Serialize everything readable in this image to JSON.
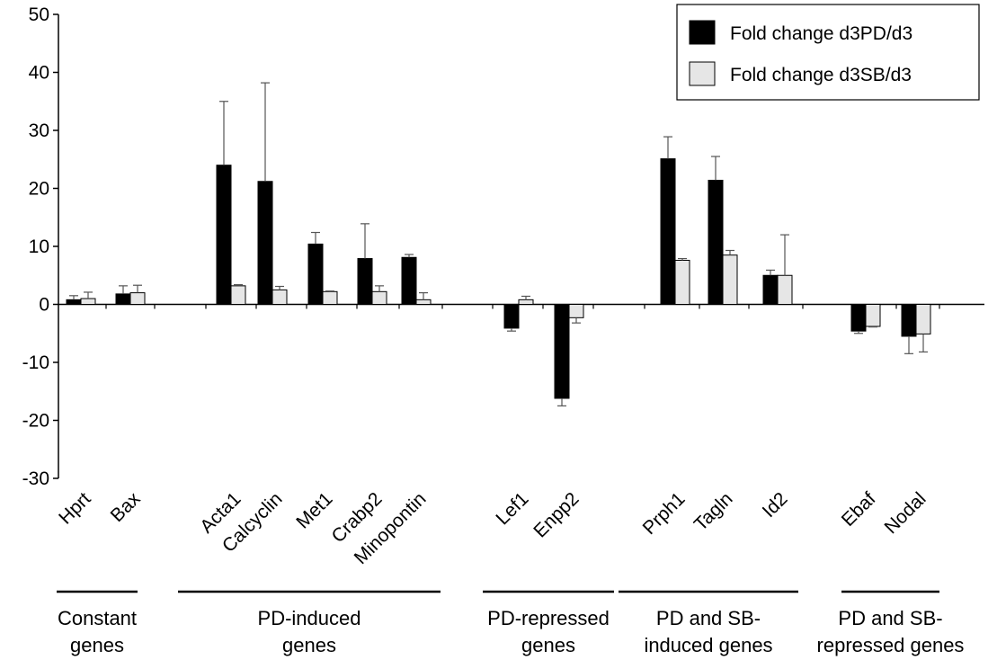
{
  "chart_data": {
    "type": "bar",
    "ylim": [
      -30,
      50
    ],
    "yticks": [
      -30,
      -20,
      -10,
      0,
      10,
      20,
      30,
      40,
      50
    ],
    "ytick_labels": [
      "-30",
      "-20",
      "-10",
      "0",
      "10",
      "20",
      "30",
      "40",
      "50"
    ],
    "grid": false,
    "legend_position": "top-right",
    "categories": [
      "Hprt",
      "Bax",
      "Acta1",
      "Calcyclin",
      "Met1",
      "Crabp2",
      "Minopontin",
      "Lef1",
      "Enpp2",
      "Prph1",
      "Tagln",
      "Id2",
      "Ebaf",
      "Nodal"
    ],
    "series": [
      {
        "name": "Fold change d3PD/d3",
        "color": "#000000",
        "values": [
          0.8,
          1.8,
          24.0,
          21.2,
          10.4,
          7.9,
          8.1,
          -4.1,
          -16.2,
          25.1,
          21.4,
          5.0,
          -4.6,
          -5.5
        ],
        "errors": [
          0.7,
          1.4,
          11.0,
          17.0,
          2.0,
          6.0,
          0.5,
          0.5,
          1.3,
          3.8,
          4.1,
          0.9,
          0.4,
          3.0
        ]
      },
      {
        "name": "Fold change d3SB/d3",
        "color": "#e6e6e6",
        "values": [
          1.0,
          2.0,
          3.2,
          2.5,
          2.2,
          2.2,
          0.8,
          0.8,
          -2.3,
          7.6,
          8.5,
          5.0,
          -3.8,
          -5.1
        ],
        "errors": [
          1.1,
          1.3,
          0.2,
          0.6,
          0.1,
          1.0,
          1.2,
          0.6,
          0.9,
          0.3,
          0.8,
          7.0,
          0.1,
          3.1
        ]
      }
    ],
    "groups": [
      {
        "label_lines": [
          "Constant",
          "genes"
        ],
        "categories": [
          "Hprt",
          "Bax"
        ]
      },
      {
        "label_lines": [
          "PD-induced",
          "genes"
        ],
        "categories": [
          "Acta1",
          "Calcyclin",
          "Met1",
          "Crabp2",
          "Minopontin"
        ]
      },
      {
        "label_lines": [
          "PD-repressed",
          "genes"
        ],
        "categories": [
          "Lef1",
          "Enpp2"
        ]
      },
      {
        "label_lines": [
          "PD and SB-",
          "induced genes"
        ],
        "categories": [
          "Prph1",
          "Tagln",
          "Id2"
        ]
      },
      {
        "label_lines": [
          "PD and SB-",
          "repressed genes"
        ],
        "categories": [
          "Ebaf",
          "Nodal"
        ]
      }
    ]
  }
}
